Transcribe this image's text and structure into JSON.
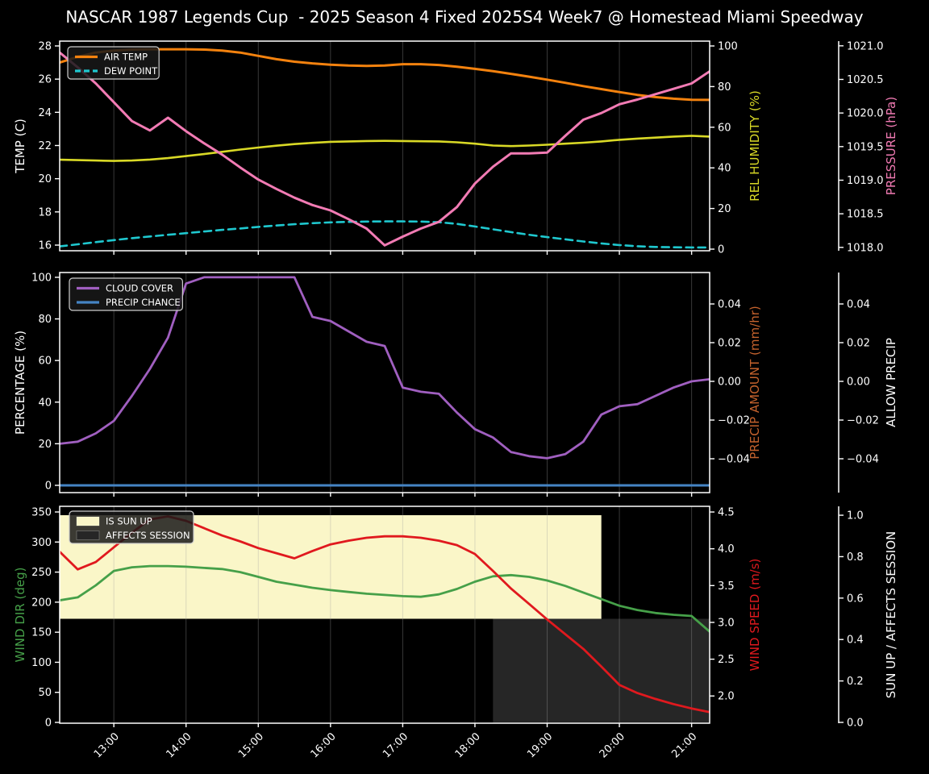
{
  "title": "NASCAR 1987 Legends Cup  - 2025 Season 4 Fixed 2025S4 Week7 @ Homestead Miami Speedway",
  "colors": {
    "background": "#000000",
    "foreground": "#ffffff",
    "air_temp": "#f4820e",
    "dew_point": "#1fc8cf",
    "rel_humidity": "#d9d926",
    "pressure": "#f27bb4",
    "cloud_cover": "#a05fc0",
    "precip_chance": "#4584c4",
    "precip_amount_label": "#c4622d",
    "wind_dir": "#46a049",
    "wind_speed": "#e0191e",
    "sun_band": "#faf6c8",
    "affects_band": "#262626"
  },
  "chart_data": {
    "type": "line",
    "x": {
      "unit": "time-of-day",
      "start_hour": 12.25,
      "step_hours": 0.25,
      "n_points": 37,
      "lim": [
        12.25,
        21.25
      ],
      "tick_hours": [
        13,
        14,
        15,
        16,
        17,
        18,
        19,
        20,
        21
      ],
      "tick_labels": [
        "13:00",
        "14:00",
        "15:00",
        "16:00",
        "17:00",
        "18:00",
        "19:00",
        "20:00",
        "21:00"
      ]
    },
    "panels": [
      {
        "name": "temperature-humidity-pressure",
        "show_x_labels": false,
        "axes": {
          "left": {
            "label": "TEMP (C)",
            "color": "#ffffff",
            "lim": [
              15.66,
              28.29
            ],
            "ticks": [
              [
                16,
                "16"
              ],
              [
                18,
                "18"
              ],
              [
                20,
                "20"
              ],
              [
                22,
                "22"
              ],
              [
                24,
                "24"
              ],
              [
                26,
                "26"
              ],
              [
                28,
                "28"
              ]
            ]
          },
          "right1": {
            "label": "REL HUMIDITY (%)",
            "color": "#d9d926",
            "lim": [
              -0.79,
              102.38
            ],
            "ticks": [
              [
                0,
                "0"
              ],
              [
                20,
                "20"
              ],
              [
                40,
                "40"
              ],
              [
                60,
                "60"
              ],
              [
                80,
                "80"
              ],
              [
                100,
                "100"
              ]
            ]
          },
          "right2": {
            "label": "PRESSURE (hPa)",
            "color": "#f27bb4",
            "lim": [
              1017.95,
              1021.07
            ],
            "ticks": [
              [
                1018,
                "1018.0"
              ],
              [
                1018.5,
                "1018.5"
              ],
              [
                1019,
                "1019.0"
              ],
              [
                1019.5,
                "1019.5"
              ],
              [
                1020,
                "1020.0"
              ],
              [
                1020.5,
                "1020.5"
              ],
              [
                1021,
                "1021.0"
              ]
            ]
          }
        },
        "legend": [
          {
            "label": "AIR TEMP",
            "color": "#f4820e",
            "style": "line"
          },
          {
            "label": "DEW POINT",
            "color": "#1fc8cf",
            "style": "dash"
          }
        ],
        "series": [
          {
            "name": "air-temp",
            "axis": "left",
            "color": "#f4820e",
            "width": 3,
            "values": [
              27.0,
              27.35,
              27.6,
              27.72,
              27.78,
              27.8,
              27.8,
              27.8,
              27.78,
              27.72,
              27.6,
              27.4,
              27.2,
              27.05,
              26.95,
              26.87,
              26.82,
              26.8,
              26.82,
              26.9,
              26.9,
              26.85,
              26.75,
              26.62,
              26.48,
              26.32,
              26.15,
              25.97,
              25.78,
              25.58,
              25.4,
              25.22,
              25.05,
              24.92,
              24.82,
              24.76,
              24.75
            ]
          },
          {
            "name": "dew-point",
            "axis": "left",
            "color": "#1fc8cf",
            "width": 2.6,
            "dash": "9 6",
            "values": [
              15.92,
              16.05,
              16.18,
              16.3,
              16.42,
              16.52,
              16.62,
              16.72,
              16.82,
              16.92,
              17.0,
              17.1,
              17.18,
              17.26,
              17.32,
              17.37,
              17.4,
              17.42,
              17.43,
              17.43,
              17.42,
              17.38,
              17.28,
              17.12,
              16.95,
              16.78,
              16.62,
              16.48,
              16.35,
              16.22,
              16.1,
              16.0,
              15.93,
              15.89,
              15.87,
              15.86,
              15.86
            ]
          },
          {
            "name": "rel-humidity",
            "axis": "right1",
            "color": "#d9d926",
            "width": 2.6,
            "values": [
              44.0,
              43.8,
              43.6,
              43.4,
              43.6,
              44.1,
              44.8,
              45.8,
              46.8,
              47.9,
              49.0,
              50.0,
              50.9,
              51.7,
              52.3,
              52.8,
              53.0,
              53.2,
              53.3,
              53.2,
              53.1,
              53.0,
              52.6,
              51.9,
              51.0,
              50.7,
              51.0,
              51.4,
              51.9,
              52.4,
              53.0,
              53.8,
              54.4,
              54.9,
              55.4,
              55.8,
              55.4
            ]
          },
          {
            "name": "pressure",
            "axis": "right2",
            "color": "#f27bb4",
            "width": 3,
            "values": [
              1020.9,
              1020.68,
              1020.44,
              1020.16,
              1019.88,
              1019.74,
              1019.93,
              1019.73,
              1019.55,
              1019.38,
              1019.19,
              1019.01,
              1018.87,
              1018.74,
              1018.63,
              1018.55,
              1018.42,
              1018.28,
              1018.03,
              1018.16,
              1018.28,
              1018.38,
              1018.6,
              1018.95,
              1019.2,
              1019.4,
              1019.4,
              1019.41,
              1019.66,
              1019.9,
              1020.0,
              1020.13,
              1020.2,
              1020.28,
              1020.36,
              1020.44,
              1020.62
            ]
          }
        ],
        "bands": []
      },
      {
        "name": "cloud-precip",
        "show_x_labels": false,
        "axes": {
          "left": {
            "label": "PERCENTAGE (%)",
            "color": "#ffffff",
            "lim": [
              -3.5,
              102.3
            ],
            "ticks": [
              [
                0,
                "0"
              ],
              [
                20,
                "20"
              ],
              [
                40,
                "40"
              ],
              [
                60,
                "60"
              ],
              [
                80,
                "80"
              ],
              [
                100,
                "100"
              ]
            ]
          },
          "right1": {
            "label": "PRECIP AMOUNT (mm/hr)",
            "color": "#c4622d",
            "lim": [
              -0.0575,
              0.05625
            ],
            "ticks": [
              [
                -0.04,
                "−0.04"
              ],
              [
                -0.02,
                "−0.02"
              ],
              [
                0,
                "0.00"
              ],
              [
                0.02,
                "0.02"
              ],
              [
                0.04,
                "0.04"
              ]
            ]
          },
          "right2": {
            "label": "ALLOW PRECIP",
            "color": "#ffffff",
            "lim": [
              -0.0575,
              0.05625
            ],
            "ticks": [
              [
                -0.04,
                "−0.04"
              ],
              [
                -0.02,
                "−0.02"
              ],
              [
                0,
                "0.00"
              ],
              [
                0.02,
                "0.02"
              ],
              [
                0.04,
                "0.04"
              ]
            ]
          }
        },
        "legend": [
          {
            "label": "CLOUD COVER",
            "color": "#a05fc0",
            "style": "line"
          },
          {
            "label": "PRECIP CHANCE",
            "color": "#4584c4",
            "style": "line"
          }
        ],
        "series": [
          {
            "name": "cloud-cover",
            "axis": "left",
            "color": "#a05fc0",
            "width": 2.8,
            "values": [
              20,
              21,
              25,
              31,
              43,
              56,
              71,
              97,
              100,
              100,
              100,
              100,
              100,
              100,
              81,
              79,
              74,
              69,
              67,
              47,
              45,
              44,
              35,
              27,
              23,
              16,
              14,
              13,
              15,
              21,
              34,
              38,
              39,
              43,
              47,
              50,
              51
            ]
          },
          {
            "name": "precip-chance",
            "axis": "left",
            "color": "#4584c4",
            "width": 3,
            "values": [
              0,
              0,
              0,
              0,
              0,
              0,
              0,
              0,
              0,
              0,
              0,
              0,
              0,
              0,
              0,
              0,
              0,
              0,
              0,
              0,
              0,
              0,
              0,
              0,
              0,
              0,
              0,
              0,
              0,
              0,
              0,
              0,
              0,
              0,
              0,
              0,
              0
            ]
          }
        ],
        "bands": []
      },
      {
        "name": "wind-sun",
        "show_x_labels": true,
        "axes": {
          "left": {
            "label": "WIND DIR (deg)",
            "color": "#46a049",
            "lim": [
              -1.34,
              359.4
            ],
            "ticks": [
              [
                0,
                "0"
              ],
              [
                50,
                "50"
              ],
              [
                100,
                "100"
              ],
              [
                150,
                "150"
              ],
              [
                200,
                "200"
              ],
              [
                250,
                "250"
              ],
              [
                300,
                "300"
              ],
              [
                350,
                "350"
              ]
            ]
          },
          "right1": {
            "label": "WIND SPEED (m/s)",
            "color": "#e0191e",
            "lim": [
              1.63,
              4.577
            ],
            "ticks": [
              [
                2,
                "2.0"
              ],
              [
                2.5,
                "2.5"
              ],
              [
                3,
                "3.0"
              ],
              [
                3.5,
                "3.5"
              ],
              [
                4,
                "4.0"
              ],
              [
                4.5,
                "4.5"
              ]
            ]
          },
          "right2": {
            "label": "SUN UP / AFFECTS SESSION",
            "color": "#ffffff",
            "lim": [
              -0.004,
              1.043
            ],
            "ticks": [
              [
                0,
                "0.0"
              ],
              [
                0.2,
                "0.2"
              ],
              [
                0.4,
                "0.4"
              ],
              [
                0.6,
                "0.6"
              ],
              [
                0.8,
                "0.8"
              ],
              [
                1,
                "1.0"
              ]
            ]
          }
        },
        "legend": [
          {
            "label": "IS SUN UP",
            "color": "#faf6c8",
            "style": "patch"
          },
          {
            "label": "AFFECTS SESSION",
            "color": "#262626",
            "style": "patch"
          }
        ],
        "series": [
          {
            "name": "wind-dir",
            "axis": "left",
            "color": "#46a049",
            "width": 2.8,
            "values": [
              203,
              208,
              228,
              252,
              258,
              260,
              260,
              259,
              257,
              255,
              250,
              242,
              234,
              229,
              224,
              220,
              217,
              214,
              212,
              210,
              209,
              213,
              222,
              234,
              243,
              245,
              242,
              236,
              227,
              216,
              205,
              194,
              187,
              182,
              179,
              177,
              151
            ]
          },
          {
            "name": "wind-speed",
            "axis": "right1",
            "color": "#e0191e",
            "width": 2.8,
            "values": [
              3.96,
              3.72,
              3.82,
              4.02,
              4.22,
              4.4,
              4.44,
              4.38,
              4.28,
              4.18,
              4.1,
              4.01,
              3.94,
              3.87,
              3.97,
              4.06,
              4.11,
              4.15,
              4.17,
              4.17,
              4.15,
              4.11,
              4.05,
              3.93,
              3.7,
              3.46,
              3.25,
              3.04,
              2.84,
              2.64,
              2.4,
              2.15,
              2.04,
              1.96,
              1.89,
              1.83,
              1.78
            ]
          }
        ],
        "bands": [
          {
            "name": "is-sun-up",
            "axis": "right2",
            "color": "#faf6c8",
            "t": [
              12.25,
              19.75
            ],
            "v": [
              0.5,
              1.0
            ]
          },
          {
            "name": "affects-session",
            "axis": "right2",
            "color": "#262626",
            "t": [
              18.25,
              21.25
            ],
            "v": [
              0.0,
              0.5
            ]
          }
        ]
      }
    ]
  }
}
